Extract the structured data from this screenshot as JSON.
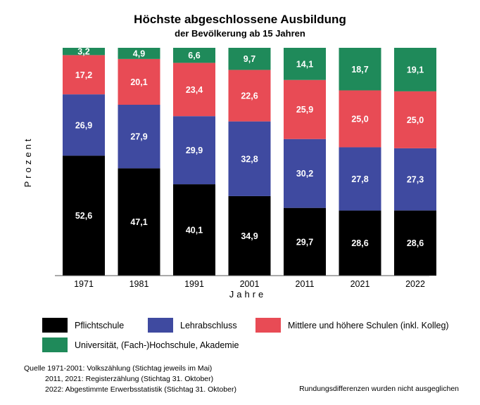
{
  "chart_data": {
    "type": "bar",
    "stacked": true,
    "title": "Höchste abgeschlossene Ausbildung",
    "subtitle": "der Bevölkerung ab 15 Jahren",
    "xlabel": "Jahre",
    "ylabel": "Prozent",
    "ylim": [
      0,
      100
    ],
    "grid": false,
    "categories": [
      "1971",
      "1981",
      "1991",
      "2001",
      "2011",
      "2021",
      "2022"
    ],
    "series": [
      {
        "name": "Pflichtschule",
        "color": "#000000",
        "values": [
          52.6,
          47.1,
          40.1,
          34.9,
          29.7,
          28.6,
          28.6
        ],
        "labels": [
          "52,6",
          "47,1",
          "40,1",
          "34,9",
          "29,7",
          "28,6",
          "28,6"
        ]
      },
      {
        "name": "Lehrabschluss",
        "color": "#3f4aa0",
        "values": [
          26.9,
          27.9,
          29.9,
          32.8,
          30.2,
          27.8,
          27.3
        ],
        "labels": [
          "26,9",
          "27,9",
          "29,9",
          "32,8",
          "30,2",
          "27,8",
          "27,3"
        ]
      },
      {
        "name": "Mittlere und höhere Schulen (inkl. Kolleg)",
        "color": "#e84b55",
        "values": [
          17.2,
          20.1,
          23.4,
          22.6,
          25.9,
          25.0,
          25.0
        ],
        "labels": [
          "17,2",
          "20,1",
          "23,4",
          "22,6",
          "25,9",
          "25,0",
          "25,0"
        ]
      },
      {
        "name": "Universität, (Fach-)Hochschule, Akademie",
        "color": "#1f8a5a",
        "values": [
          3.2,
          4.9,
          6.6,
          9.7,
          14.1,
          18.7,
          19.1
        ],
        "labels": [
          "3,2",
          "4,9",
          "6,6",
          "9,7",
          "14,1",
          "18,7",
          "19,1"
        ]
      }
    ],
    "legend_position": "bottom"
  },
  "source": {
    "line1": "Quelle 1971-2001: Volkszählung (Stichtag jeweils im Mai)",
    "line2": "2011, 2021: Registerzählung (Stichtag 31. Oktober)",
    "line3": "2022: Abgestimmte Erwerbsstatistik (Stichtag 31. Oktober)"
  },
  "note": "Rundungsdifferenzen wurden nicht ausgeglichen"
}
